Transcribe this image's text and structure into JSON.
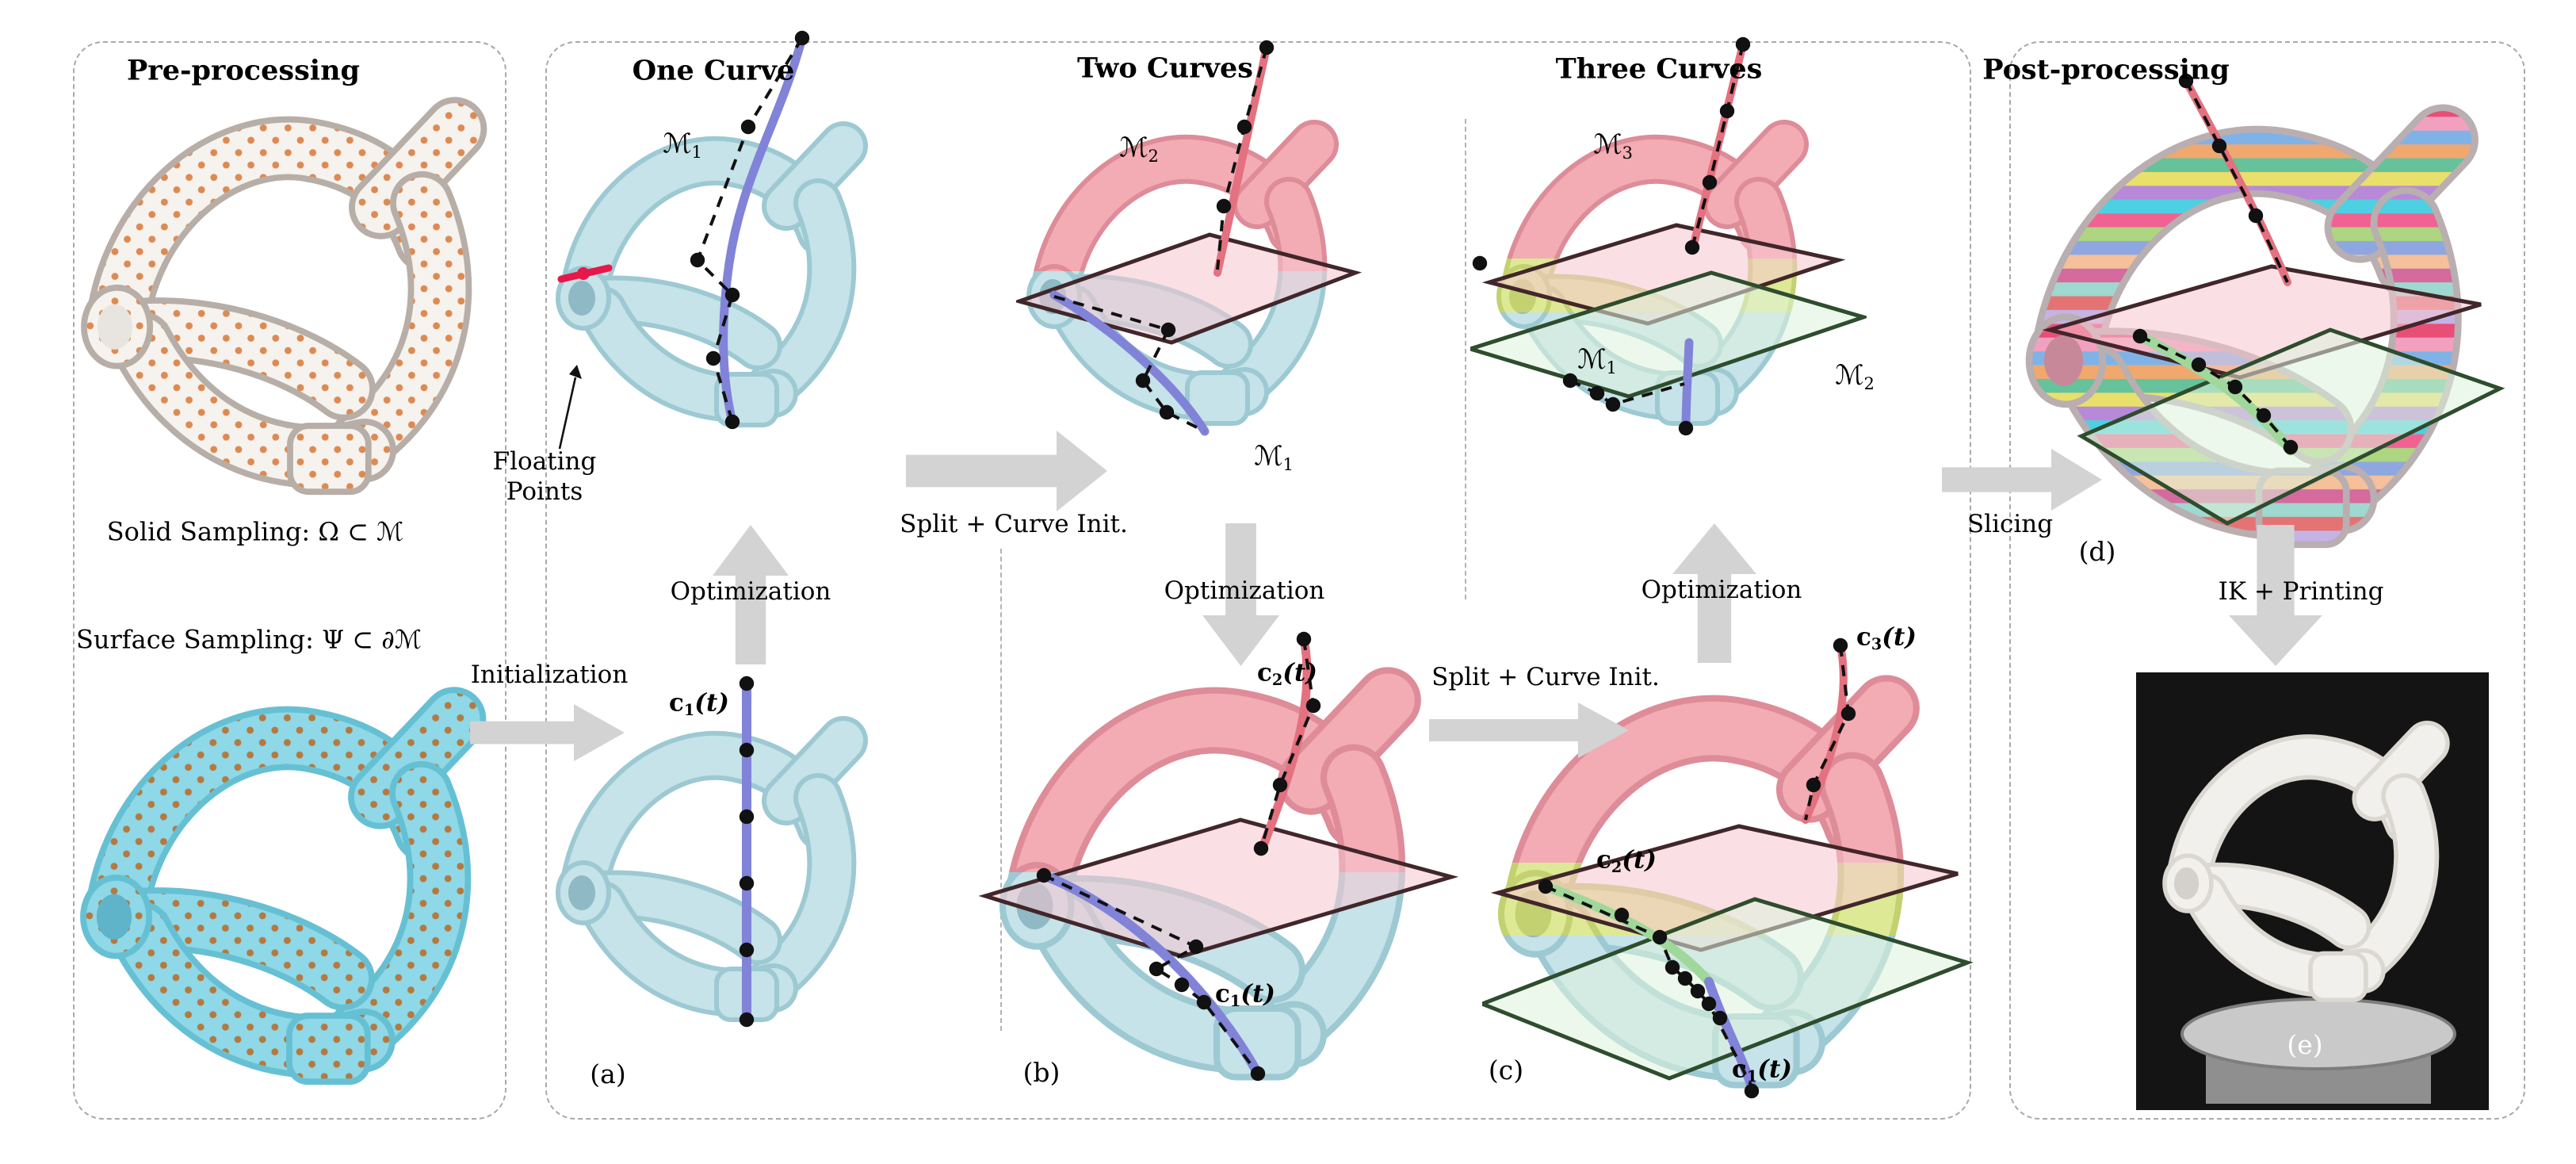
{
  "titles": {
    "pre": "Pre-processing",
    "one": "One Curve",
    "two": "Two Curves",
    "three": "Three Curves",
    "post": "Post-processing"
  },
  "labels": {
    "solid_sampling": "Solid Sampling: Ω ⊂ ℳ",
    "surface_sampling": "Surface Sampling: Ψ ⊂ ∂ℳ",
    "floating_line1": "Floating",
    "floating_line2": "Points",
    "initialization": "Initialization",
    "optimization": "Optimization",
    "split_init": "Split + Curve Init.",
    "slicing": "Slicing",
    "ik_printing": "IK + Printing",
    "sub_a": "(a)",
    "sub_b": "(b)",
    "sub_c": "(c)",
    "sub_d": "(d)",
    "sub_e": "(e)"
  },
  "math": {
    "m1": {
      "base": "ℳ",
      "sub": "1"
    },
    "m2": {
      "base": "ℳ",
      "sub": "2"
    },
    "m3": {
      "base": "ℳ",
      "sub": "3"
    },
    "c1": {
      "base": "c",
      "sub": "1",
      "rest": "(t)"
    },
    "c2": {
      "base": "c",
      "sub": "2",
      "rest": "(t)"
    },
    "c3": {
      "base": "c",
      "sub": "3",
      "rest": "(t)"
    }
  },
  "colors": {
    "panel_border": "#a9a9a9",
    "arrow": "#d3d3d3",
    "cyan_fill": "#c5e3e8",
    "cyan_edge": "#9dc9d3",
    "cyan_hole": "#8fb9c4",
    "bright_cyan": "#8ed8e7",
    "bright_cyan_edge": "#66c0d4",
    "sample_dot": "#b5793f",
    "wire_bg": "#f6f2ee",
    "wire_edge": "#b7aea7",
    "wire_dot": "#dd8a52",
    "wire_hole": "#e8e4e0",
    "pink_fill": "#f3abb4",
    "pink_edge": "#dd8c98",
    "pink_hole": "#d47a88",
    "yellow_fill": "#dde995",
    "yellow_edge": "#c3d171",
    "purple": "#8183d8",
    "curve_pink": "#e4717f",
    "curve_green": "#9fd89a",
    "red_accent": "#e8174a",
    "plane_pink": "#f5c6cf",
    "plane_pink_edge": "#41262a",
    "plane_green": "#def2dc",
    "plane_green_edge": "#2e4d2e",
    "photo_bg": "#141414",
    "print_white": "#f2f0ec",
    "print_edge": "#dbd7d1",
    "print_hole": "#d4d1cc",
    "platform": "#c9c9c9",
    "platform_dark": "#8f8f8f",
    "dot_black": "#111111"
  },
  "slice_palette": [
    "#e94e77",
    "#f2a0c0",
    "#7fb3e8",
    "#f0a86e",
    "#66c29a",
    "#e8e06a",
    "#b789d8",
    "#4dd0e1",
    "#f06292",
    "#aed581",
    "#8fa7e0",
    "#f5c09a",
    "#d46a9e",
    "#9fd8cf",
    "#e57373",
    "#c5b3e6"
  ]
}
